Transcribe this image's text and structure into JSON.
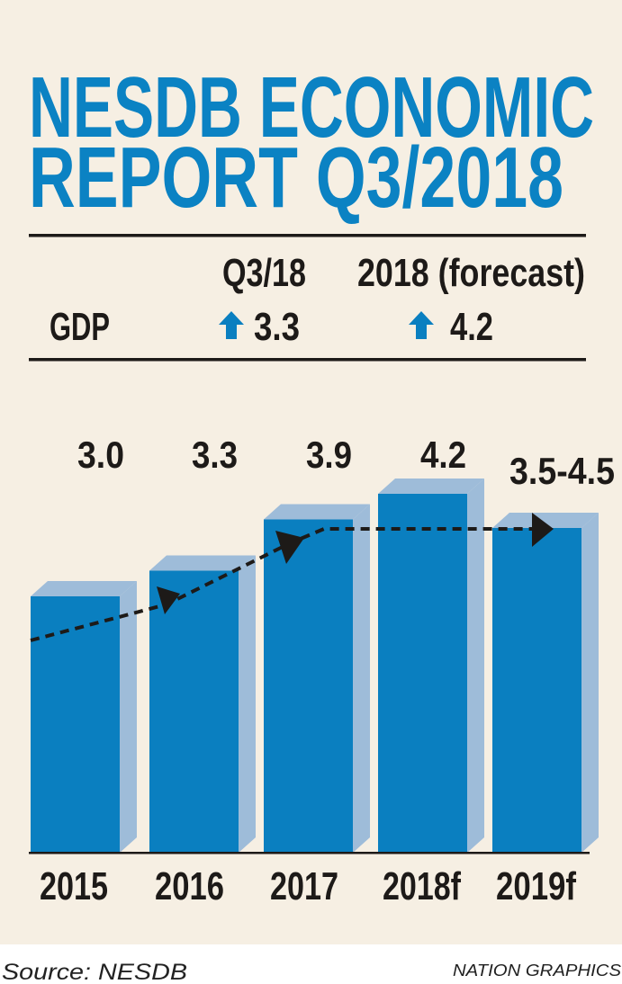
{
  "title_line1": "NESDB ECONOMIC",
  "title_line2": "REPORT Q3/2018",
  "summary": {
    "col1_header": "Q3/18",
    "col2_header": "2018 (forecast)",
    "row_label": "GDP",
    "col1_value": "3.3",
    "col2_value": "4.2",
    "trend_icon": "arrow-up-icon"
  },
  "chart_data": {
    "type": "bar",
    "categories": [
      "2015",
      "2016",
      "2017",
      "2018f",
      "2019f"
    ],
    "values": [
      3.0,
      3.3,
      3.9,
      4.2,
      [
        3.5,
        4.5
      ]
    ],
    "data_labels": [
      "3.0",
      "3.3",
      "3.9",
      "4.2",
      "3.5-4.5"
    ],
    "title": "",
    "xlabel": "",
    "ylabel": "",
    "grid": false,
    "style": "3d-bars with dashed trend arrow",
    "colors": {
      "bar_front": "#0a7fc0",
      "bar_side": "#9ebcd9",
      "title": "#0b82c3",
      "background": "#f6efe3"
    }
  },
  "footer": {
    "source": "Source: NESDB",
    "credit": "NATION GRAPHICS"
  }
}
